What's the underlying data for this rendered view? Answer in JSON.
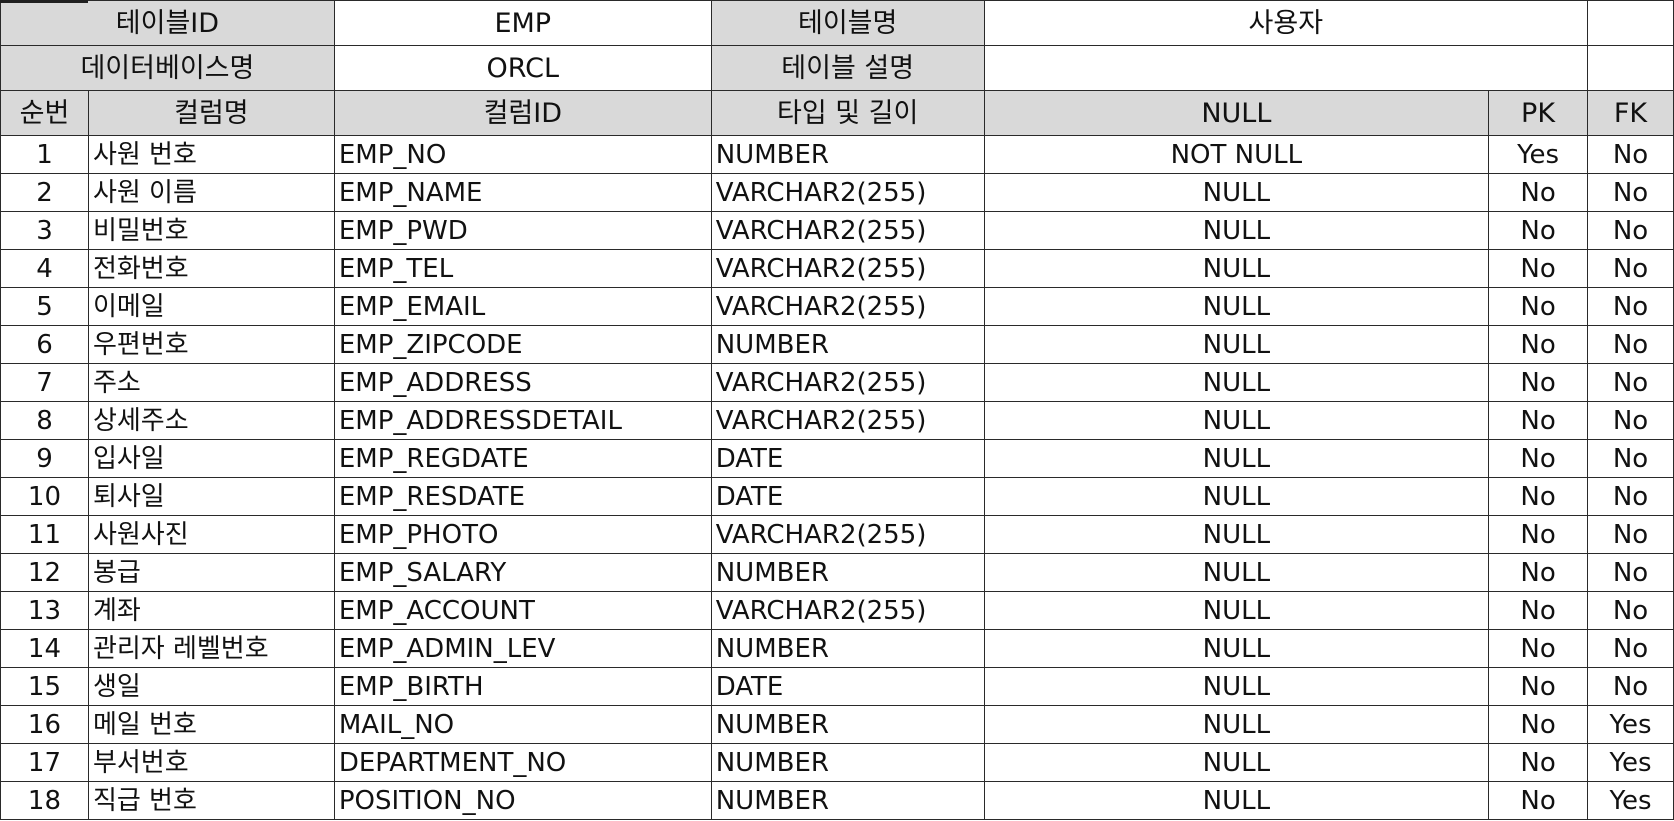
{
  "meta": {
    "table_id_label": "테이블ID",
    "table_id_value": "EMP",
    "table_name_label": "테이블명",
    "table_name_value": "사용자",
    "db_name_label": "데이터베이스명",
    "db_name_value": "ORCL",
    "table_desc_label": "테이블 설명",
    "table_desc_value": ""
  },
  "headers": {
    "seq": "순번",
    "col_name": "컬럼명",
    "col_id": "컬럼ID",
    "type_len": "타입 및 길이",
    "null": "NULL",
    "pk": "PK",
    "fk": "FK"
  },
  "rows": [
    {
      "seq": "1",
      "name": "사원 번호",
      "id": "EMP_NO",
      "type": "NUMBER",
      "null": "NOT NULL",
      "pk": "Yes",
      "fk": "No"
    },
    {
      "seq": "2",
      "name": "사원 이름",
      "id": "EMP_NAME",
      "type": "VARCHAR2(255)",
      "null": "NULL",
      "pk": "No",
      "fk": "No"
    },
    {
      "seq": "3",
      "name": "비밀번호",
      "id": "EMP_PWD",
      "type": "VARCHAR2(255)",
      "null": "NULL",
      "pk": "No",
      "fk": "No"
    },
    {
      "seq": "4",
      "name": "전화번호",
      "id": "EMP_TEL",
      "type": "VARCHAR2(255)",
      "null": "NULL",
      "pk": "No",
      "fk": "No"
    },
    {
      "seq": "5",
      "name": "이메일",
      "id": "EMP_EMAIL",
      "type": "VARCHAR2(255)",
      "null": "NULL",
      "pk": "No",
      "fk": "No"
    },
    {
      "seq": "6",
      "name": "우편번호",
      "id": "EMP_ZIPCODE",
      "type": "NUMBER",
      "null": "NULL",
      "pk": "No",
      "fk": "No"
    },
    {
      "seq": "7",
      "name": "주소",
      "id": "EMP_ADDRESS",
      "type": "VARCHAR2(255)",
      "null": "NULL",
      "pk": "No",
      "fk": "No"
    },
    {
      "seq": "8",
      "name": "상세주소",
      "id": "EMP_ADDRESSDETAIL",
      "type": "VARCHAR2(255)",
      "null": "NULL",
      "pk": "No",
      "fk": "No"
    },
    {
      "seq": "9",
      "name": "입사일",
      "id": "EMP_REGDATE",
      "type": "DATE",
      "null": "NULL",
      "pk": "No",
      "fk": "No"
    },
    {
      "seq": "10",
      "name": "퇴사일",
      "id": "EMP_RESDATE",
      "type": "DATE",
      "null": "NULL",
      "pk": "No",
      "fk": "No"
    },
    {
      "seq": "11",
      "name": "사원사진",
      "id": "EMP_PHOTO",
      "type": "VARCHAR2(255)",
      "null": "NULL",
      "pk": "No",
      "fk": "No"
    },
    {
      "seq": "12",
      "name": "봉급",
      "id": "EMP_SALARY",
      "type": "NUMBER",
      "null": "NULL",
      "pk": "No",
      "fk": "No"
    },
    {
      "seq": "13",
      "name": "계좌",
      "id": "EMP_ACCOUNT",
      "type": "VARCHAR2(255)",
      "null": "NULL",
      "pk": "No",
      "fk": "No"
    },
    {
      "seq": "14",
      "name": "관리자 레벨번호",
      "id": "EMP_ADMIN_LEV",
      "type": "NUMBER",
      "null": "NULL",
      "pk": "No",
      "fk": "No"
    },
    {
      "seq": "15",
      "name": "생일",
      "id": "EMP_BIRTH",
      "type": "DATE",
      "null": "NULL",
      "pk": "No",
      "fk": "No"
    },
    {
      "seq": "16",
      "name": "메일 번호",
      "id": "MAIL_NO",
      "type": "NUMBER",
      "null": "NULL",
      "pk": "No",
      "fk": "Yes"
    },
    {
      "seq": "17",
      "name": "부서번호",
      "id": "DEPARTMENT_NO",
      "type": "NUMBER",
      "null": "NULL",
      "pk": "No",
      "fk": "Yes"
    },
    {
      "seq": "18",
      "name": "직급 번호",
      "id": "POSITION_NO",
      "type": "NUMBER",
      "null": "NULL",
      "pk": "No",
      "fk": "Yes"
    }
  ]
}
